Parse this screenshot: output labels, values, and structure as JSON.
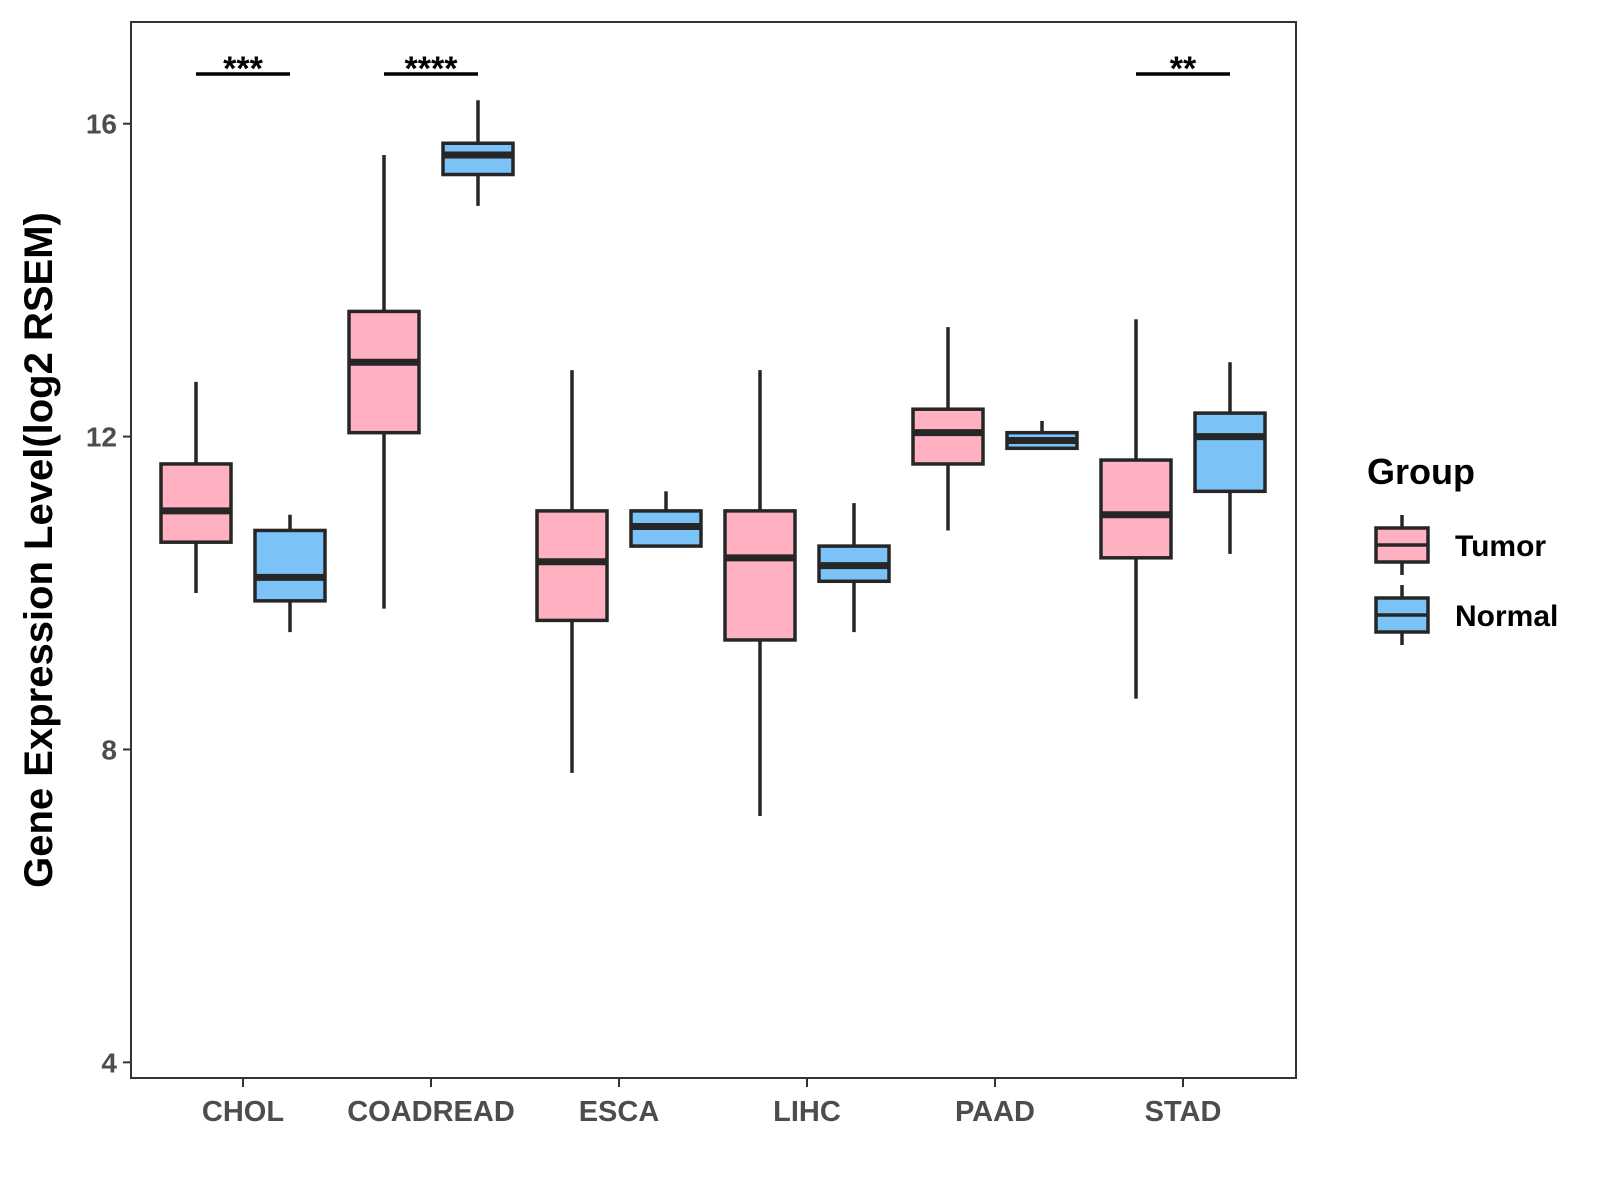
{
  "chart_data": {
    "type": "boxplot",
    "title": "",
    "xlabel": "",
    "ylabel": "Gene Expression Level(log2 RSEM)",
    "ylim": [
      3.8,
      17.3
    ],
    "yticks": [
      "4",
      "8",
      "12",
      "16"
    ],
    "categories": [
      "CHOL",
      "COADREAD",
      "ESCA",
      "LIHC",
      "PAAD",
      "STAD"
    ],
    "series": [
      {
        "name": "Tumor",
        "color": "#FFB1C1",
        "boxes": [
          {
            "whisker_low": 10.0,
            "q1": 10.65,
            "median": 11.05,
            "q3": 11.65,
            "whisker_high": 12.7
          },
          {
            "whisker_low": 9.8,
            "q1": 12.05,
            "median": 12.95,
            "q3": 13.6,
            "whisker_high": 15.6
          },
          {
            "whisker_low": 7.7,
            "q1": 9.65,
            "median": 10.4,
            "q3": 11.05,
            "whisker_high": 12.85
          },
          {
            "whisker_low": 7.15,
            "q1": 9.4,
            "median": 10.45,
            "q3": 11.05,
            "whisker_high": 12.85
          },
          {
            "whisker_low": 10.8,
            "q1": 11.65,
            "median": 12.05,
            "q3": 12.35,
            "whisker_high": 13.4
          },
          {
            "whisker_low": 8.65,
            "q1": 10.45,
            "median": 11.0,
            "q3": 11.7,
            "whisker_high": 13.5
          }
        ]
      },
      {
        "name": "Normal",
        "color": "#7BC3F7",
        "boxes": [
          {
            "whisker_low": 9.5,
            "q1": 9.9,
            "median": 10.2,
            "q3": 10.8,
            "whisker_high": 11.0
          },
          {
            "whisker_low": 14.95,
            "q1": 15.35,
            "median": 15.6,
            "q3": 15.75,
            "whisker_high": 16.3
          },
          {
            "whisker_low": 10.6,
            "q1": 10.6,
            "median": 10.85,
            "q3": 11.05,
            "whisker_high": 11.3
          },
          {
            "whisker_low": 9.5,
            "q1": 10.15,
            "median": 10.35,
            "q3": 10.6,
            "whisker_high": 11.15
          },
          {
            "whisker_low": 11.85,
            "q1": 11.85,
            "median": 11.95,
            "q3": 12.05,
            "whisker_high": 12.2
          },
          {
            "whisker_low": 10.5,
            "q1": 11.3,
            "median": 12.0,
            "q3": 12.3,
            "whisker_high": 12.95
          }
        ]
      }
    ],
    "annotations": [
      {
        "category": "CHOL",
        "label": "***"
      },
      {
        "category": "COADREAD",
        "label": "****"
      },
      {
        "category": "STAD",
        "label": "**"
      }
    ],
    "legend": {
      "title": "Group",
      "position": "right",
      "items": [
        "Tumor",
        "Normal"
      ]
    },
    "grid": false
  }
}
